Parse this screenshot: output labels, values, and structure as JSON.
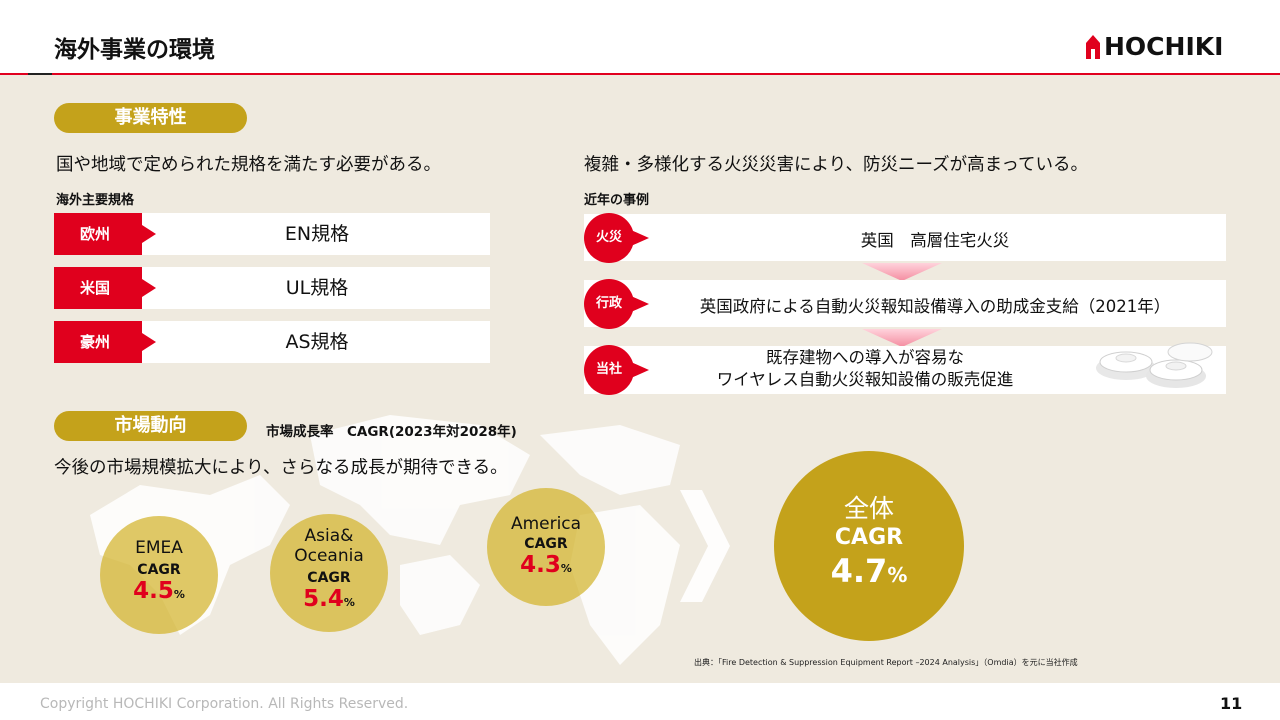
{
  "page": {
    "title": "海外事業の環境",
    "number": "11"
  },
  "logo": {
    "text": "HOCHIKI"
  },
  "features": {
    "pill": "事業特性",
    "left": {
      "lead": "国や地域で定められた規格を満たす必要がある。",
      "subhead": "海外主要規格",
      "standards": [
        {
          "region": "欧州",
          "name": "EN規格"
        },
        {
          "region": "米国",
          "name": "UL規格"
        },
        {
          "region": "豪州",
          "name": "AS規格"
        }
      ]
    },
    "right": {
      "lead": "複雑・多様化する火災災害により、防災ニーズが高まっている。",
      "subhead": "近年の事例",
      "cases": [
        {
          "tag": "火災",
          "text": "英国　高層住宅火災"
        },
        {
          "tag": "行政",
          "text": "英国政府による自動火災報知設備導入の助成金支給（2021年）"
        },
        {
          "tag": "当社",
          "text_line1": "既存建物への導入が容易な",
          "text_line2": "ワイヤレス自動火災報知設備の販売促進"
        }
      ]
    }
  },
  "market": {
    "pill": "市場動向",
    "cagr_caption": "市場成長率　CAGR(2023年対2028年)",
    "lead": "今後の市場規模拡大により、さらなる成長が期待できる。",
    "regions": [
      {
        "name": "EMEA",
        "cagr_label": "CAGR",
        "value": "4.5",
        "unit": "%"
      },
      {
        "name_line1": "Asia&",
        "name_line2": "Oceania",
        "cagr_label": "CAGR",
        "value": "5.4",
        "unit": "%"
      },
      {
        "name": "America",
        "cagr_label": "CAGR",
        "value": "4.3",
        "unit": "%"
      }
    ],
    "total": {
      "label": "全体",
      "cagr_label": "CAGR",
      "value": "4.7",
      "unit": "%"
    },
    "source": "出典：「Fire Detection & Suppression Equipment Report –2024 Analysis」（Omdia）を元に当社作成"
  },
  "footer": {
    "copyright": "Copyright HOCHIKI Corporation. All Rights Reserved."
  },
  "colors": {
    "accent_red": "#e0001d",
    "gold": "#c4a21b",
    "background": "#efeadf"
  }
}
